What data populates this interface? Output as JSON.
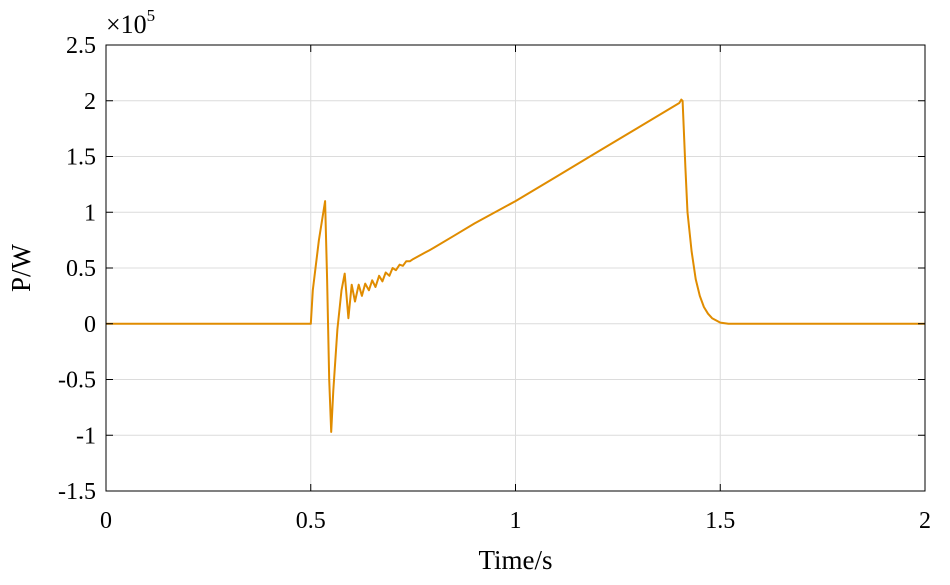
{
  "chart_data": {
    "type": "line",
    "xlabel": "Time/s",
    "ylabel": "P/W",
    "y_exponent_base": "×10",
    "y_exponent_power": "5",
    "xlim": [
      0,
      2
    ],
    "ylim": [
      -1.5,
      2.5
    ],
    "x_ticks": [
      0,
      0.5,
      1,
      1.5,
      2
    ],
    "x_tick_labels": [
      "0",
      "0.5",
      "1",
      "1.5",
      "2"
    ],
    "y_ticks": [
      2.5,
      2,
      1.5,
      1,
      0.5,
      0,
      -0.5,
      -1,
      -1.5
    ],
    "y_tick_labels": [
      "2.5",
      "2",
      "1.5",
      "1",
      "0.5",
      "0",
      "-0.5",
      "-1",
      "-1.5"
    ],
    "grid": true,
    "series": [
      {
        "color": "#E08C00",
        "x": [
          0,
          0.3,
          0.5,
          0.505,
          0.52,
          0.535,
          0.54,
          0.545,
          0.55,
          0.555,
          0.565,
          0.575,
          0.583,
          0.592,
          0.6,
          0.608,
          0.617,
          0.625,
          0.633,
          0.642,
          0.65,
          0.658,
          0.667,
          0.675,
          0.683,
          0.692,
          0.7,
          0.708,
          0.717,
          0.725,
          0.733,
          0.742,
          0.75,
          0.76,
          0.77,
          0.78,
          0.79,
          0.8,
          0.85,
          0.9,
          1.0,
          1.1,
          1.2,
          1.3,
          1.4,
          1.405,
          1.408,
          1.415,
          1.42,
          1.43,
          1.44,
          1.45,
          1.46,
          1.47,
          1.48,
          1.5,
          1.52,
          1.55,
          1.6,
          1.7,
          1.8,
          1.9,
          2.0
        ],
        "y": [
          0,
          0,
          0,
          0.3,
          0.75,
          1.1,
          0.4,
          -0.5,
          -0.97,
          -0.6,
          -0.05,
          0.3,
          0.45,
          0.05,
          0.35,
          0.2,
          0.35,
          0.25,
          0.36,
          0.3,
          0.39,
          0.33,
          0.43,
          0.38,
          0.46,
          0.43,
          0.5,
          0.48,
          0.53,
          0.52,
          0.56,
          0.56,
          0.58,
          0.6,
          0.62,
          0.64,
          0.66,
          0.68,
          0.79,
          0.9,
          1.1,
          1.32,
          1.54,
          1.76,
          1.98,
          2.01,
          2.0,
          1.4,
          1.0,
          0.65,
          0.4,
          0.25,
          0.15,
          0.09,
          0.05,
          0.01,
          0.0,
          0.0,
          0.0,
          0.0,
          0.0,
          0.0,
          0.0
        ]
      }
    ]
  }
}
